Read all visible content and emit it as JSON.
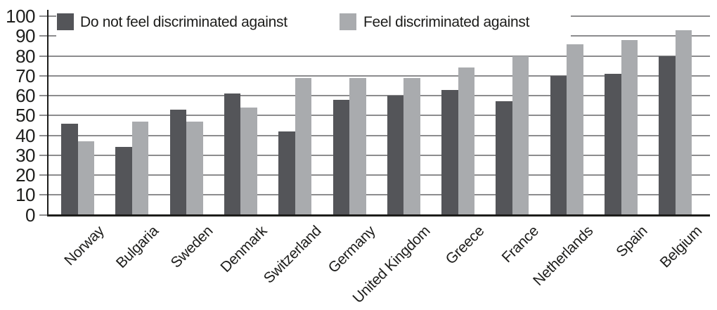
{
  "chart_data": {
    "type": "bar",
    "title": "",
    "categories": [
      "Norway",
      "Bulgaria",
      "Sweden",
      "Denmark",
      "Switzerland",
      "Germany",
      "United Kingdom",
      "Greece",
      "France",
      "Netherlands",
      "Spain",
      "Belgium"
    ],
    "series": [
      {
        "name": "Do not feel discriminated against",
        "color": "#545559",
        "values": [
          46,
          34,
          53,
          61,
          42,
          58,
          60,
          63,
          57,
          70,
          71,
          80
        ]
      },
      {
        "name": "Feel discriminated against",
        "color": "#a9abae",
        "values": [
          37,
          47,
          47,
          54,
          69,
          69,
          69,
          74,
          80,
          86,
          88,
          93
        ]
      }
    ],
    "xlabel": "",
    "ylabel": "",
    "ylim": [
      0,
      100
    ],
    "yticks": [
      0,
      10,
      20,
      30,
      40,
      50,
      60,
      70,
      80,
      90,
      100
    ],
    "grid": "horizontal gridlines every 10 units",
    "legend_position": "top, horizontal, white box overlapping the 90 and 100 gridlines",
    "colors": {
      "gridline": "#8c8c8e",
      "axis": "#1d1d1b",
      "text": "#1d1d1b",
      "background": "#ffffff"
    }
  }
}
